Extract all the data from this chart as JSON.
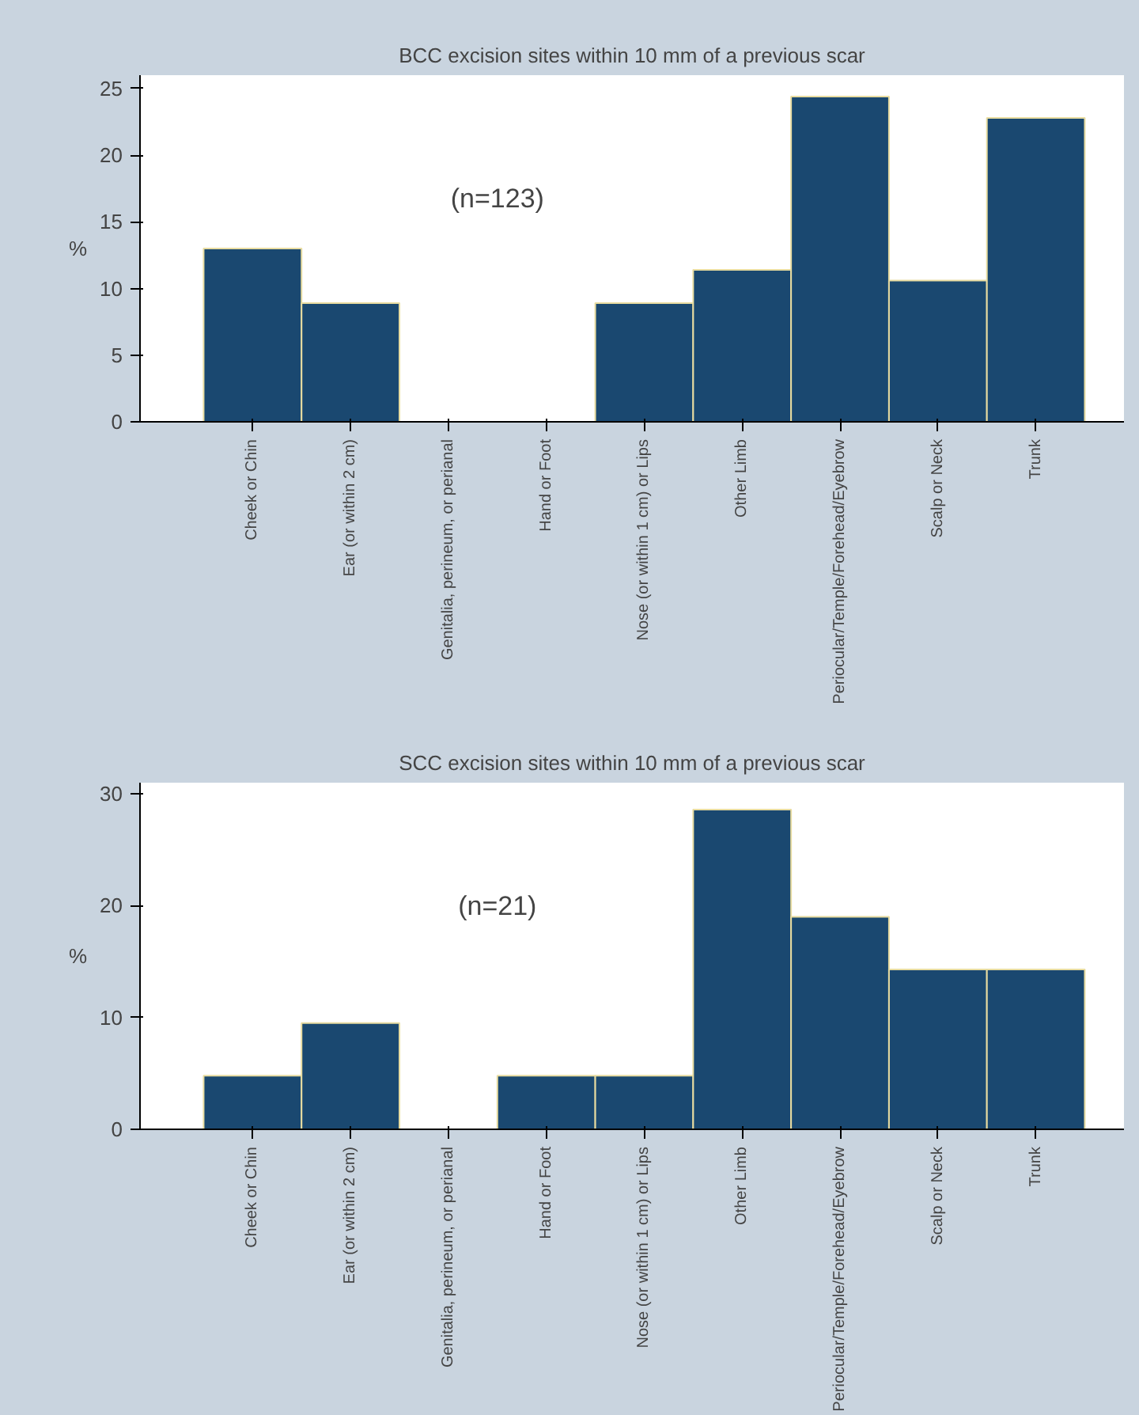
{
  "chart_data": [
    {
      "type": "bar",
      "title": "BCC excision sites within 10 mm of a previous scar",
      "ylabel": "%",
      "categories": [
        "Cheek or Chin",
        "Ear (or within 2 cm)",
        "Genitalia, perineum, or perianal",
        "Hand or Foot",
        "Nose (or within 1 cm) or Lips",
        "Other Limb",
        "Periocular/Temple/Forehead/Eyebrow",
        "Scalp or Neck",
        "Trunk"
      ],
      "values": [
        13.0,
        8.9,
        0,
        0,
        8.9,
        11.4,
        24.4,
        10.6,
        22.8
      ],
      "color": "#1a4870",
      "ylim": [
        0,
        26
      ],
      "yticks": [
        0,
        5,
        10,
        15,
        20,
        25
      ],
      "grid": false,
      "annotations": [
        "(n=123)"
      ]
    },
    {
      "type": "bar",
      "title": "SCC excision sites within 10 mm of a previous scar",
      "ylabel": "%",
      "categories": [
        "Cheek or Chin",
        "Ear (or within 2 cm)",
        "Genitalia, perineum, or perianal",
        "Hand or Foot",
        "Nose (or within 1 cm) or Lips",
        "Other Limb",
        "Periocular/Temple/Forehead/Eyebrow",
        "Scalp or Neck",
        "Trunk"
      ],
      "values": [
        4.8,
        9.5,
        0,
        4.8,
        4.8,
        28.6,
        19.0,
        14.3,
        14.3
      ],
      "color": "#1a4870",
      "ylim": [
        0,
        31
      ],
      "yticks": [
        0,
        10,
        20,
        30
      ],
      "grid": false,
      "annotations": [
        "(n=21)"
      ]
    }
  ]
}
